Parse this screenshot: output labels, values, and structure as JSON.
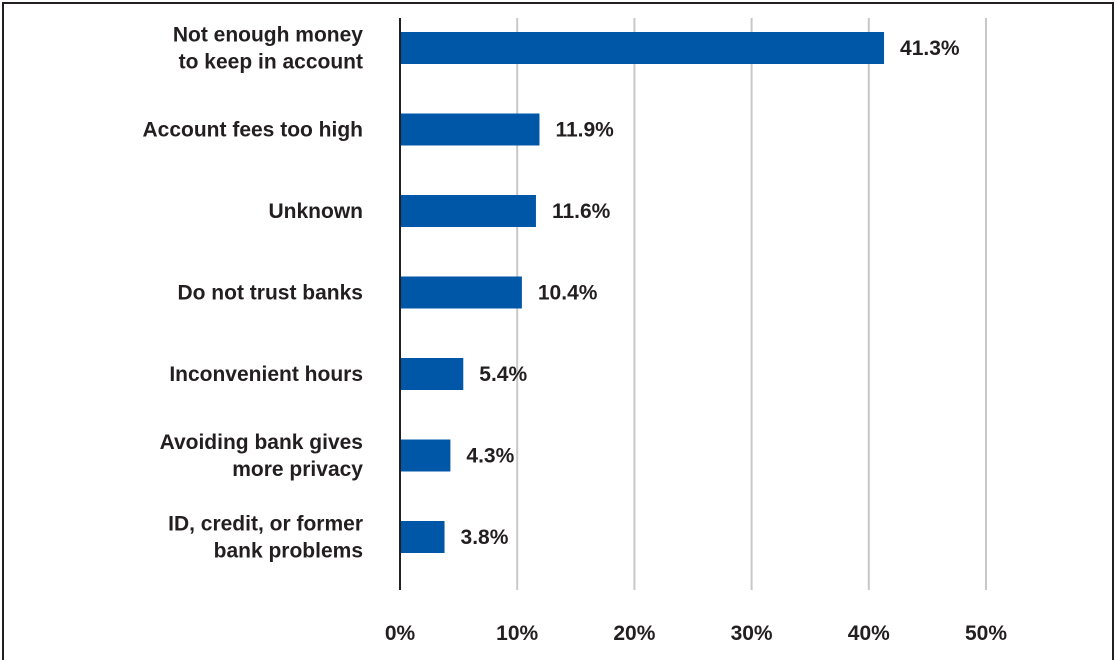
{
  "chart_data": {
    "type": "bar",
    "orientation": "horizontal",
    "categories": [
      [
        "Not enough money",
        "to keep in account"
      ],
      [
        "Account fees too high"
      ],
      [
        "Unknown"
      ],
      [
        "Do not trust banks"
      ],
      [
        "Inconvenient hours"
      ],
      [
        "Avoiding bank gives",
        "more privacy"
      ],
      [
        "ID, credit, or former",
        "bank problems"
      ]
    ],
    "values": [
      41.3,
      11.9,
      11.6,
      10.4,
      5.4,
      4.3,
      3.8
    ],
    "value_labels": [
      "41.3%",
      "11.9%",
      "11.6%",
      "10.4%",
      "5.4%",
      "4.3%",
      "3.8%"
    ],
    "xlim": [
      0,
      50
    ],
    "xticks": [
      0,
      10,
      20,
      30,
      40,
      50
    ],
    "xtick_labels": [
      "0%",
      "10%",
      "20%",
      "30%",
      "40%",
      "50%"
    ],
    "grid": "vertical",
    "legend": "none",
    "colors": {
      "bar": "#0057a8",
      "grid": "#c8c8c8",
      "text": "#231f20",
      "frame": "#231f20"
    }
  }
}
